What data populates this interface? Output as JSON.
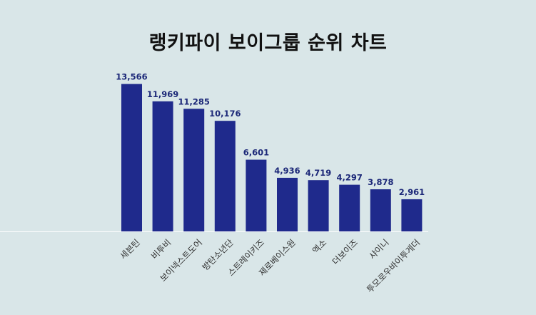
{
  "chart_data": {
    "type": "bar",
    "title": "랭키파이 보이그룹 순위 차트",
    "xlabel": "",
    "ylabel": "",
    "categories": [
      "세븐틴",
      "비투비",
      "보이넥스트도어",
      "방탄소년단",
      "스트레이키즈",
      "제로베이스원",
      "엑소",
      "더보이즈",
      "샤이니",
      "투모로우바이투게더"
    ],
    "values": [
      13566,
      11969,
      11285,
      10176,
      6601,
      4936,
      4719,
      4297,
      3878,
      2961
    ],
    "value_labels": [
      "13,566",
      "11,969",
      "11,285",
      "10,176",
      "6,601",
      "4,936",
      "4,719",
      "4,297",
      "3,878",
      "2,961"
    ],
    "ylim": [
      0,
      14000
    ],
    "grid": false,
    "legend": "none",
    "bar_color": "#1f2a8c",
    "label_color": "#1c2878",
    "background": "#d9e6e8"
  }
}
